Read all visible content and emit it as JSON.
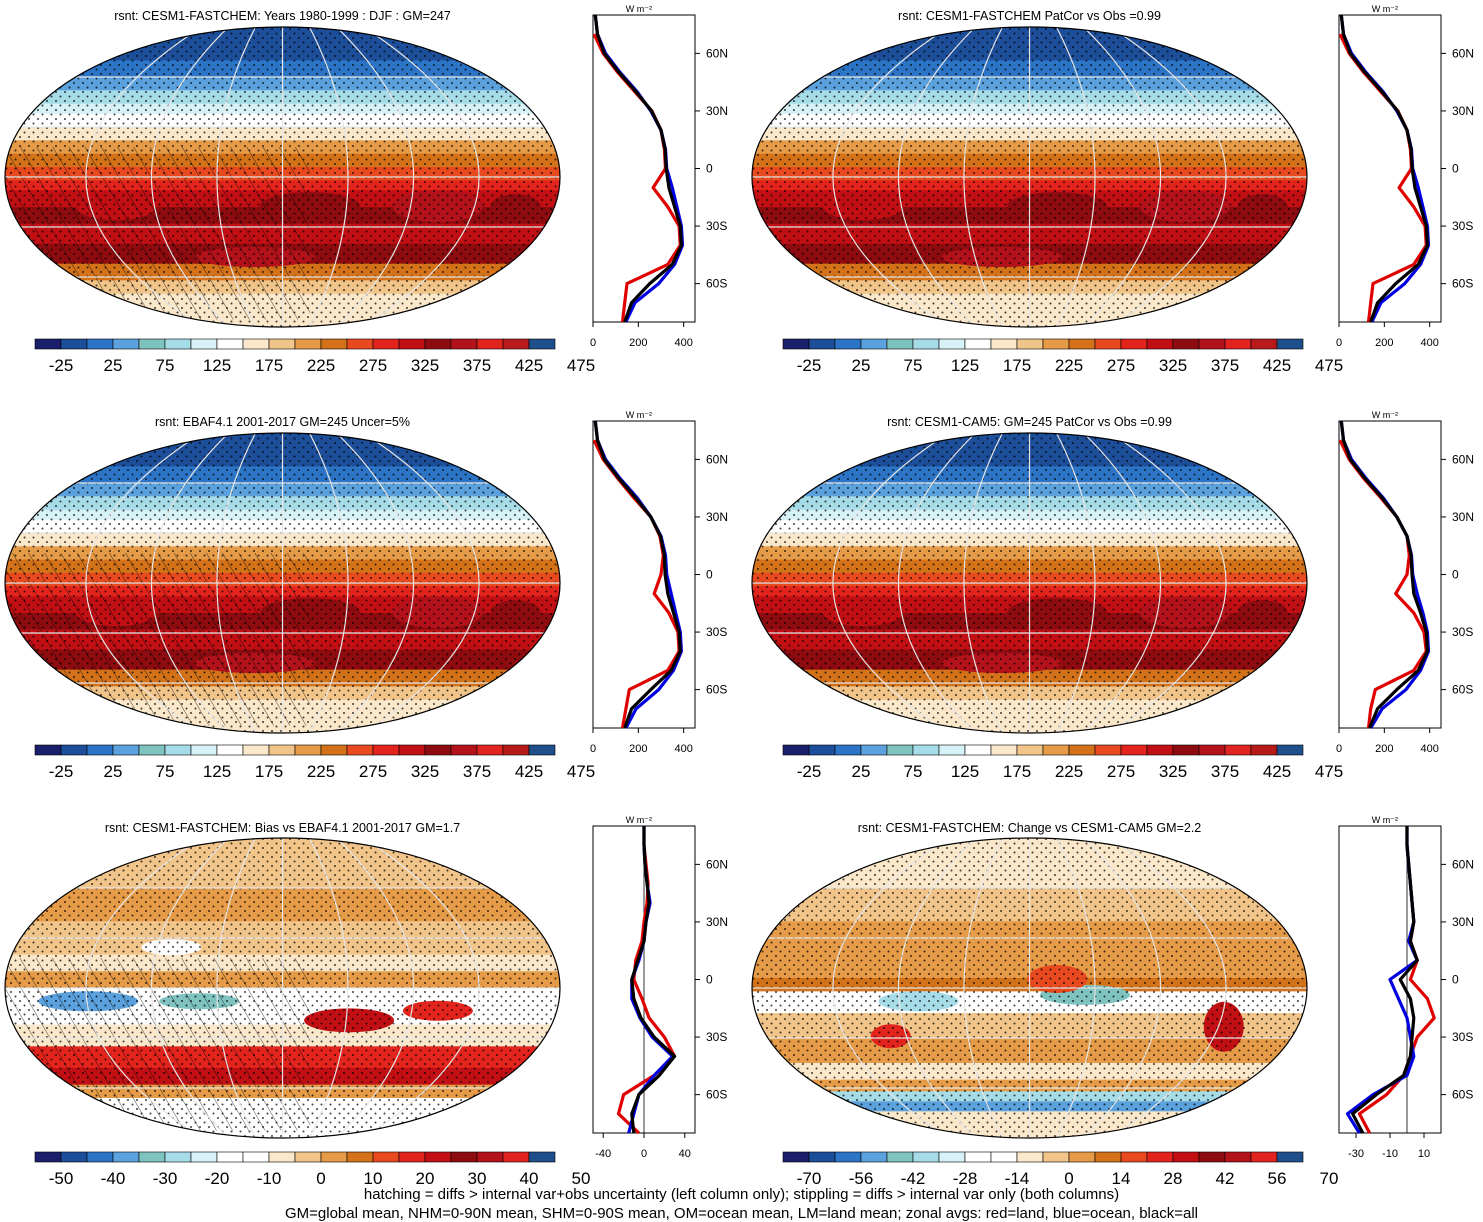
{
  "panels": [
    {
      "title": "rsnt: CESM1-FASTCHEM: Years 1980-1999 : DJF : GM=247",
      "kind": "abs",
      "hatching": true,
      "colorbar": {
        "labels": [
          "-25",
          "25",
          "75",
          "125",
          "175",
          "225",
          "275",
          "325",
          "375",
          "425",
          "475"
        ]
      },
      "profile": {
        "unit": "W m⁻²",
        "xticks": [
          "0",
          "200",
          "400"
        ],
        "xmin": 0,
        "xmax": 450,
        "yticks": [
          "60N",
          "30N",
          "0",
          "30S",
          "60S"
        ]
      }
    },
    {
      "title": "rsnt: CESM1-FASTCHEM PatCor vs Obs =0.99",
      "kind": "abs",
      "hatching": false,
      "colorbar": {
        "labels": [
          "-25",
          "25",
          "75",
          "125",
          "175",
          "225",
          "275",
          "325",
          "375",
          "425",
          "475"
        ]
      },
      "profile": {
        "unit": "W m⁻²",
        "xticks": [
          "0",
          "200",
          "400"
        ],
        "xmin": 0,
        "xmax": 450,
        "yticks": [
          "60N",
          "30N",
          "0",
          "30S",
          "60S"
        ]
      }
    },
    {
      "title": "rsnt: EBAF4.1 2001-2017 GM=245 Uncer=5%",
      "kind": "abs",
      "hatching": true,
      "colorbar": {
        "labels": [
          "-25",
          "25",
          "75",
          "125",
          "175",
          "225",
          "275",
          "325",
          "375",
          "425",
          "475"
        ]
      },
      "profile": {
        "unit": "W m⁻²",
        "xticks": [
          "0",
          "200",
          "400"
        ],
        "xmin": 0,
        "xmax": 450,
        "yticks": [
          "60N",
          "30N",
          "0",
          "30S",
          "60S"
        ]
      }
    },
    {
      "title": "rsnt: CESM1-CAM5: GM=245 PatCor vs Obs =0.99",
      "kind": "abs",
      "hatching": false,
      "colorbar": {
        "labels": [
          "-25",
          "25",
          "75",
          "125",
          "175",
          "225",
          "275",
          "325",
          "375",
          "425",
          "475"
        ]
      },
      "profile": {
        "unit": "W m⁻²",
        "xticks": [
          "0",
          "200",
          "400"
        ],
        "xmin": 0,
        "xmax": 450,
        "yticks": [
          "60N",
          "30N",
          "0",
          "30S",
          "60S"
        ]
      }
    },
    {
      "title": "rsnt: CESM1-FASTCHEM: Bias vs EBAF4.1 2001-2017 GM=1.7",
      "kind": "diff",
      "hatching": true,
      "colorbar": {
        "labels": [
          "-50",
          "-40",
          "-30",
          "-20",
          "-10",
          "0",
          "10",
          "20",
          "30",
          "40",
          "50"
        ]
      },
      "profile": {
        "unit": "W m⁻²",
        "xticks": [
          "-40",
          "0",
          "40"
        ],
        "xmin": -50,
        "xmax": 50,
        "yticks": [
          "60N",
          "30N",
          "0",
          "30S",
          "60S"
        ]
      }
    },
    {
      "title": "rsnt: CESM1-FASTCHEM: Change vs CESM1-CAM5 GM=2.2",
      "kind": "change",
      "hatching": false,
      "colorbar": {
        "labels": [
          "-70",
          "-56",
          "-42",
          "-28",
          "-14",
          "0",
          "14",
          "28",
          "42",
          "56",
          "70"
        ]
      },
      "profile": {
        "unit": "W m⁻²",
        "xticks": [
          "-30",
          "-10",
          "10"
        ],
        "xmin": -40,
        "xmax": 20,
        "yticks": [
          "60N",
          "30N",
          "0",
          "30S",
          "60S"
        ]
      }
    }
  ],
  "palettes": {
    "abs": [
      "#1b1f6b",
      "#1d4e9a",
      "#2b74c6",
      "#5aa1dd",
      "#7fc3c1",
      "#a6dbe8",
      "#d6f2f6",
      "#ffffff",
      "#fbe7c9",
      "#f1c48a",
      "#e59b47",
      "#d47219",
      "#e8491e",
      "#e3241d",
      "#c10f14",
      "#8e0c10",
      "#b3121b",
      "#e1241f",
      "#b81a1a",
      "#1f4f8b"
    ],
    "diff": [
      "#1b1f6b",
      "#1d4e9a",
      "#2b74c6",
      "#5aa1dd",
      "#7fc3c1",
      "#a6dbe8",
      "#d6f2f6",
      "#ffffff",
      "#ffffff",
      "#fbe7c9",
      "#f1c48a",
      "#e59b47",
      "#d47219",
      "#e8491e",
      "#e3241d",
      "#c10f14",
      "#8e0c10",
      "#b3121b",
      "#e1241f",
      "#1f4f8b"
    ],
    "change": [
      "#1b1f6b",
      "#1d4e9a",
      "#2b74c6",
      "#5aa1dd",
      "#7fc3c1",
      "#a6dbe8",
      "#d6f2f6",
      "#ffffff",
      "#ffffff",
      "#fbe7c9",
      "#f1c48a",
      "#e59b47",
      "#d47219",
      "#e8491e",
      "#e3241d",
      "#c10f14",
      "#8e0c10",
      "#b3121b",
      "#e1241f",
      "#1f4f8b"
    ]
  },
  "chart_data": [
    {
      "type": "line",
      "title": "rsnt: CESM1-FASTCHEM: Years 1980-1999 : DJF : GM=247",
      "xlabel": "W m-2",
      "y": [
        80,
        70,
        60,
        50,
        40,
        30,
        20,
        10,
        0,
        -10,
        -20,
        -30,
        -40,
        -50,
        -60,
        -70,
        -80
      ],
      "series": [
        {
          "name": "red",
          "values": [
            null,
            5,
            45,
            110,
            185,
            260,
            300,
            315,
            320,
            265,
            330,
            380,
            385,
            330,
            150,
            140,
            130
          ]
        },
        {
          "name": "blue",
          "values": [
            10,
            20,
            55,
            120,
            195,
            255,
            300,
            320,
            325,
            350,
            370,
            390,
            395,
            360,
            290,
            185,
            145
          ]
        },
        {
          "name": "black",
          "values": [
            10,
            20,
            50,
            115,
            190,
            258,
            300,
            318,
            323,
            335,
            360,
            385,
            390,
            350,
            250,
            170,
            140
          ]
        }
      ]
    },
    {
      "type": "line",
      "title": "rsnt: CESM1-FASTCHEM PatCor vs Obs =0.99",
      "xlabel": "W m-2",
      "y": [
        80,
        70,
        60,
        50,
        40,
        30,
        20,
        10,
        0,
        -10,
        -20,
        -30,
        -40,
        -50,
        -60,
        -70,
        -80
      ],
      "series": [
        {
          "name": "red",
          "values": [
            null,
            5,
            45,
            110,
            185,
            260,
            300,
            315,
            320,
            265,
            330,
            380,
            385,
            330,
            150,
            140,
            130
          ]
        },
        {
          "name": "blue",
          "values": [
            10,
            20,
            55,
            120,
            195,
            255,
            300,
            320,
            325,
            350,
            370,
            390,
            395,
            360,
            290,
            185,
            145
          ]
        },
        {
          "name": "black",
          "values": [
            10,
            20,
            50,
            115,
            190,
            258,
            300,
            318,
            323,
            335,
            360,
            385,
            390,
            350,
            250,
            170,
            140
          ]
        }
      ]
    },
    {
      "type": "line",
      "title": "rsnt: EBAF4.1 2001-2017 GM=245 Uncer=5%",
      "xlabel": "W m-2",
      "y": [
        80,
        70,
        60,
        50,
        40,
        30,
        20,
        10,
        0,
        -10,
        -20,
        -30,
        -40,
        -50,
        -60,
        -70,
        -80
      ],
      "series": [
        {
          "name": "red",
          "values": [
            null,
            5,
            45,
            110,
            180,
            255,
            295,
            310,
            300,
            270,
            335,
            375,
            380,
            330,
            160,
            145,
            130
          ]
        },
        {
          "name": "blue",
          "values": [
            10,
            20,
            55,
            120,
            195,
            255,
            300,
            320,
            325,
            345,
            365,
            385,
            390,
            355,
            290,
            190,
            145
          ]
        },
        {
          "name": "black",
          "values": [
            10,
            20,
            50,
            115,
            188,
            255,
            298,
            315,
            318,
            330,
            355,
            380,
            385,
            345,
            255,
            170,
            140
          ]
        }
      ]
    },
    {
      "type": "line",
      "title": "rsnt: CESM1-CAM5: GM=245 PatCor vs Obs =0.99",
      "xlabel": "W m-2",
      "y": [
        80,
        70,
        60,
        50,
        40,
        30,
        20,
        10,
        0,
        -10,
        -20,
        -30,
        -40,
        -50,
        -60,
        -70,
        -80
      ],
      "series": [
        {
          "name": "red",
          "values": [
            null,
            5,
            45,
            110,
            185,
            255,
            300,
            310,
            300,
            250,
            330,
            375,
            385,
            330,
            160,
            140,
            130
          ]
        },
        {
          "name": "blue",
          "values": [
            10,
            20,
            55,
            120,
            195,
            255,
            300,
            320,
            325,
            345,
            370,
            390,
            395,
            360,
            295,
            190,
            140
          ]
        },
        {
          "name": "black",
          "values": [
            10,
            20,
            50,
            115,
            190,
            255,
            300,
            318,
            322,
            330,
            360,
            385,
            390,
            350,
            255,
            170,
            135
          ]
        }
      ]
    },
    {
      "type": "line",
      "title": "rsnt: CESM1-FASTCHEM: Bias vs EBAF4.1 2001-2017 GM=1.7",
      "xlabel": "W m-2",
      "y": [
        80,
        70,
        60,
        50,
        40,
        30,
        20,
        10,
        0,
        -10,
        -20,
        -30,
        -40,
        -50,
        -60,
        -70,
        -80
      ],
      "series": [
        {
          "name": "red",
          "values": [
            null,
            0,
            2,
            4,
            3,
            0,
            -2,
            -8,
            -10,
            -2,
            5,
            20,
            30,
            10,
            -20,
            -25,
            -5
          ]
        },
        {
          "name": "blue",
          "values": [
            0,
            0,
            1,
            3,
            6,
            2,
            0,
            -5,
            -12,
            -12,
            -4,
            8,
            28,
            10,
            -5,
            -10,
            -15
          ]
        },
        {
          "name": "black",
          "values": [
            0,
            0,
            1,
            3,
            5,
            2,
            0,
            -6,
            -12,
            -10,
            -3,
            10,
            30,
            15,
            -5,
            -12,
            -10
          ]
        }
      ]
    },
    {
      "type": "line",
      "title": "rsnt: CESM1-FASTCHEM: Change vs CESM1-CAM5 GM=2.2",
      "xlabel": "W m-2",
      "y": [
        80,
        70,
        60,
        50,
        40,
        30,
        20,
        10,
        0,
        -10,
        -20,
        -30,
        -40,
        -50,
        -60,
        -70,
        -80
      ],
      "series": [
        {
          "name": "red",
          "values": [
            null,
            0,
            1,
            2,
            3,
            4,
            2,
            6,
            2,
            12,
            16,
            6,
            2,
            -2,
            -12,
            -28,
            -22
          ]
        },
        {
          "name": "blue",
          "values": [
            0,
            0,
            1,
            2,
            3,
            4,
            1,
            6,
            -10,
            -5,
            0,
            2,
            4,
            0,
            -20,
            -35,
            -28
          ]
        },
        {
          "name": "black",
          "values": [
            0,
            0,
            1,
            2,
            3,
            4,
            2,
            6,
            -4,
            2,
            4,
            3,
            2,
            -2,
            -18,
            -32,
            -26
          ]
        }
      ]
    }
  ],
  "footer": {
    "line1": "hatching = diffs > internal var+obs uncertainty (left column only); stippling = diffs > internal var only (both columns)",
    "line2": "GM=global mean, NHM=0-90N mean, SHM=0-90S mean, OM=ocean mean, LM=land mean; zonal avgs: red=land, blue=ocean, black=all"
  }
}
